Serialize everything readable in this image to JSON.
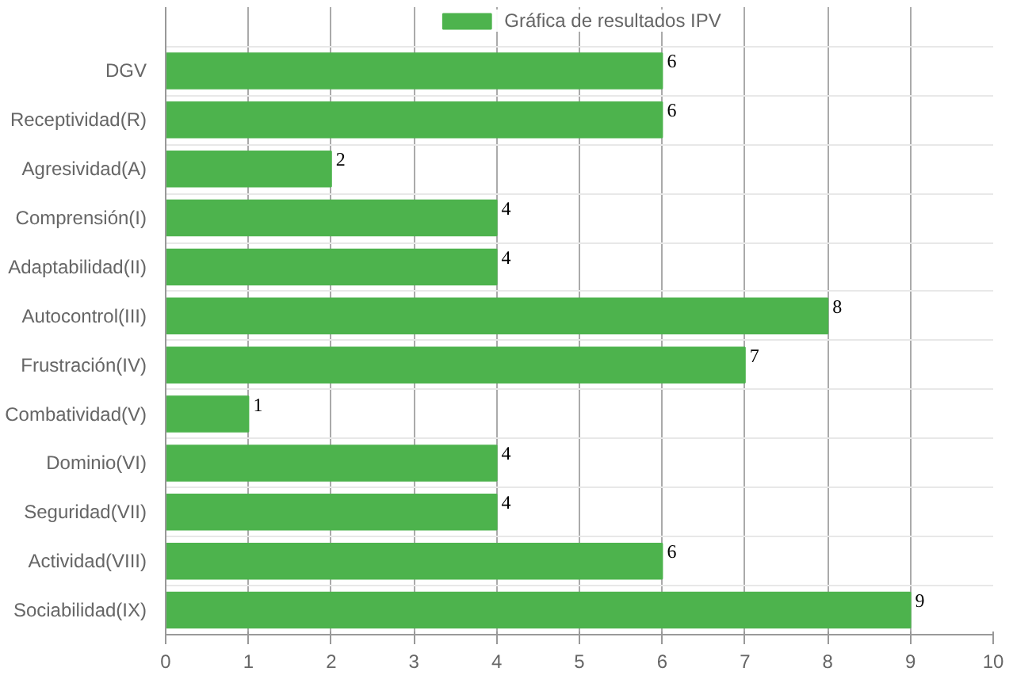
{
  "chart_data": {
    "type": "bar",
    "orientation": "horizontal",
    "categories": [
      "DGV",
      "Receptividad(R)",
      "Agresividad(A)",
      "Comprensión(I)",
      "Adaptabilidad(II)",
      "Autocontrol(III)",
      "Frustración(IV)",
      "Combatividad(V)",
      "Dominio(VI)",
      "Seguridad(VII)",
      "Actividad(VIII)",
      "Sociabilidad(IX)"
    ],
    "series": [
      {
        "name": "Gráfica de resultados IPV",
        "color": "#4db34d",
        "values": [
          6,
          6,
          2,
          4,
          4,
          8,
          7,
          1,
          4,
          4,
          6,
          9
        ]
      }
    ],
    "xlim": [
      0,
      10
    ],
    "xticks": [
      0,
      1,
      2,
      3,
      4,
      5,
      6,
      7,
      8,
      9,
      10
    ],
    "grid": true,
    "legend": "top",
    "data_labels": true
  }
}
